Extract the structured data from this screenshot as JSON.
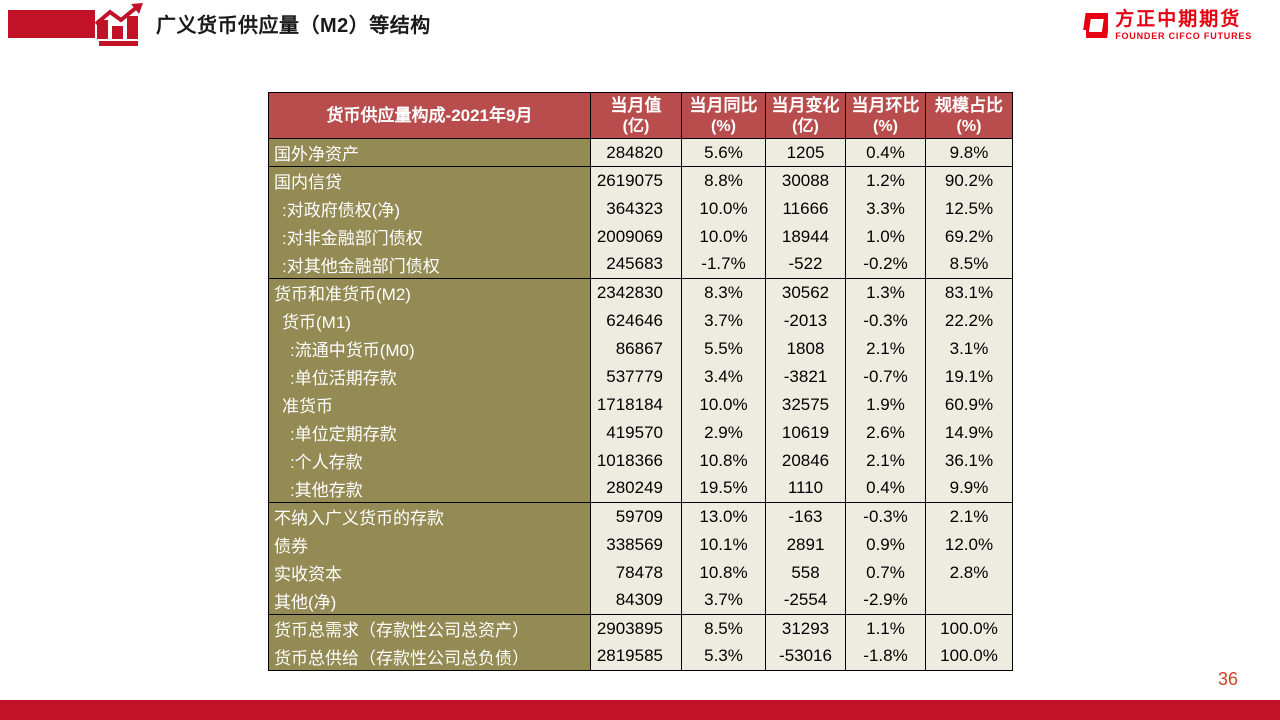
{
  "page": {
    "title": "广义货币供应量（M2）等结构",
    "page_number": "36",
    "colors": {
      "brand_red": "#C11228",
      "logo_red": "#E60012",
      "table_header_bg": "#B94D4D",
      "label_column_bg": "#948A54",
      "data_cell_bg": "#EEECE1",
      "page_number_color": "#CC4425"
    }
  },
  "logo": {
    "name": "方正中期期货",
    "subtitle": "FOUNDER CIFCO FUTURES"
  },
  "table": {
    "title": "货币供应量构成-2021年9月",
    "columns": [
      {
        "line1": "当月值",
        "line2": "(亿)"
      },
      {
        "line1": "当月同比",
        "line2": "(%)"
      },
      {
        "line1": "当月变化",
        "line2": "(亿)"
      },
      {
        "line1": "当月环比",
        "line2": "(%)"
      },
      {
        "line1": "规模占比",
        "line2": "(%)"
      }
    ],
    "rows": [
      {
        "label": "国外净资产",
        "indent": 0,
        "group_start": true,
        "values": [
          "284820",
          "5.6%",
          "1205",
          "0.4%",
          "9.8%"
        ]
      },
      {
        "label": "国内信贷",
        "indent": 0,
        "group_start": true,
        "values": [
          "2619075",
          "8.8%",
          "30088",
          "1.2%",
          "90.2%"
        ]
      },
      {
        "label": ":对政府债权(净)",
        "indent": 1,
        "group_start": false,
        "values": [
          "364323",
          "10.0%",
          "11666",
          "3.3%",
          "12.5%"
        ]
      },
      {
        "label": ":对非金融部门债权",
        "indent": 1,
        "group_start": false,
        "values": [
          "2009069",
          "10.0%",
          "18944",
          "1.0%",
          "69.2%"
        ]
      },
      {
        "label": ":对其他金融部门债权",
        "indent": 1,
        "group_start": false,
        "values": [
          "245683",
          "-1.7%",
          "-522",
          "-0.2%",
          "8.5%"
        ]
      },
      {
        "label": "货币和准货币(M2)",
        "indent": 0,
        "group_start": true,
        "values": [
          "2342830",
          "8.3%",
          "30562",
          "1.3%",
          "83.1%"
        ]
      },
      {
        "label": "货币(M1)",
        "indent": 1,
        "group_start": false,
        "values": [
          "624646",
          "3.7%",
          "-2013",
          "-0.3%",
          "22.2%"
        ]
      },
      {
        "label": ":流通中货币(M0)",
        "indent": 2,
        "group_start": false,
        "values": [
          "86867",
          "5.5%",
          "1808",
          "2.1%",
          "3.1%"
        ]
      },
      {
        "label": ":单位活期存款",
        "indent": 2,
        "group_start": false,
        "values": [
          "537779",
          "3.4%",
          "-3821",
          "-0.7%",
          "19.1%"
        ]
      },
      {
        "label": "准货币",
        "indent": 1,
        "group_start": false,
        "values": [
          "1718184",
          "10.0%",
          "32575",
          "1.9%",
          "60.9%"
        ]
      },
      {
        "label": ":单位定期存款",
        "indent": 2,
        "group_start": false,
        "values": [
          "419570",
          "2.9%",
          "10619",
          "2.6%",
          "14.9%"
        ]
      },
      {
        "label": ":个人存款",
        "indent": 2,
        "group_start": false,
        "values": [
          "1018366",
          "10.8%",
          "20846",
          "2.1%",
          "36.1%"
        ]
      },
      {
        "label": ":其他存款",
        "indent": 2,
        "group_start": false,
        "values": [
          "280249",
          "19.5%",
          "1110",
          "0.4%",
          "9.9%"
        ]
      },
      {
        "label": "不纳入广义货币的存款",
        "indent": 0,
        "group_start": true,
        "values": [
          "59709",
          "13.0%",
          "-163",
          "-0.3%",
          "2.1%"
        ]
      },
      {
        "label": "债券",
        "indent": 0,
        "group_start": false,
        "values": [
          "338569",
          "10.1%",
          "2891",
          "0.9%",
          "12.0%"
        ]
      },
      {
        "label": "实收资本",
        "indent": 0,
        "group_start": false,
        "values": [
          "78478",
          "10.8%",
          "558",
          "0.7%",
          "2.8%"
        ]
      },
      {
        "label": "其他(净)",
        "indent": 0,
        "group_start": false,
        "values": [
          "84309",
          "3.7%",
          "-2554",
          "-2.9%",
          ""
        ]
      },
      {
        "label": "货币总需求（存款性公司总资产）",
        "indent": 0,
        "group_start": true,
        "values": [
          "2903895",
          "8.5%",
          "31293",
          "1.1%",
          "100.0%"
        ]
      },
      {
        "label": "货币总供给（存款性公司总负债）",
        "indent": 0,
        "group_start": false,
        "values": [
          "2819585",
          "5.3%",
          "-53016",
          "-1.8%",
          "100.0%"
        ]
      }
    ]
  }
}
